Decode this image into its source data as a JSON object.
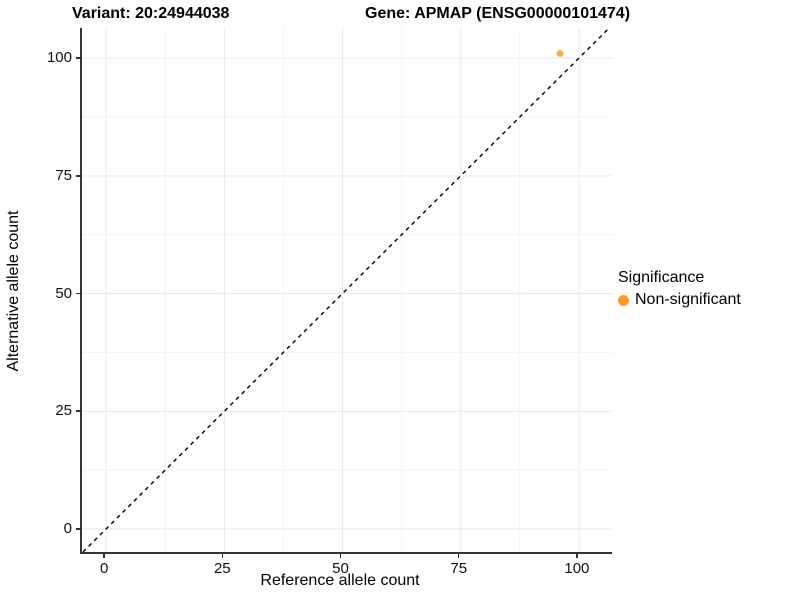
{
  "titles": {
    "variant": "Variant: 20:24944038",
    "gene": "Gene: APMAP (ENSG00000101474)"
  },
  "chart_data": {
    "type": "scatter",
    "title_left": "Variant: 20:24944038",
    "title_right": "Gene: APMAP (ENSG00000101474)",
    "xlabel": "Reference allele count",
    "ylabel": "Alternative allele count",
    "xlim": [
      -5.1,
      107.0
    ],
    "ylim": [
      -4.9,
      106.4
    ],
    "x_ticks": [
      0,
      25,
      50,
      75,
      100
    ],
    "y_ticks": [
      0,
      25,
      50,
      75,
      100
    ],
    "x_minor_ticks": [
      12.5,
      37.5,
      62.5,
      87.5
    ],
    "y_minor_ticks": [
      12.5,
      37.5,
      62.5,
      87.5
    ],
    "grid": true,
    "grid_major_color": "#e9e9e9",
    "grid_minor_color": "#f3f3f3",
    "identity_line": {
      "type": "dashed",
      "color": "#000000",
      "slope": 1,
      "intercept": 0
    },
    "series": [
      {
        "name": "Non-significant",
        "color": "#f9a342",
        "point_radius": 3.5,
        "points": [
          {
            "x": 96,
            "y": 101
          }
        ]
      }
    ],
    "legend": {
      "title": "Significance",
      "position": "right",
      "items": [
        {
          "label": "Non-significant",
          "color": "#f99b24"
        }
      ]
    }
  }
}
